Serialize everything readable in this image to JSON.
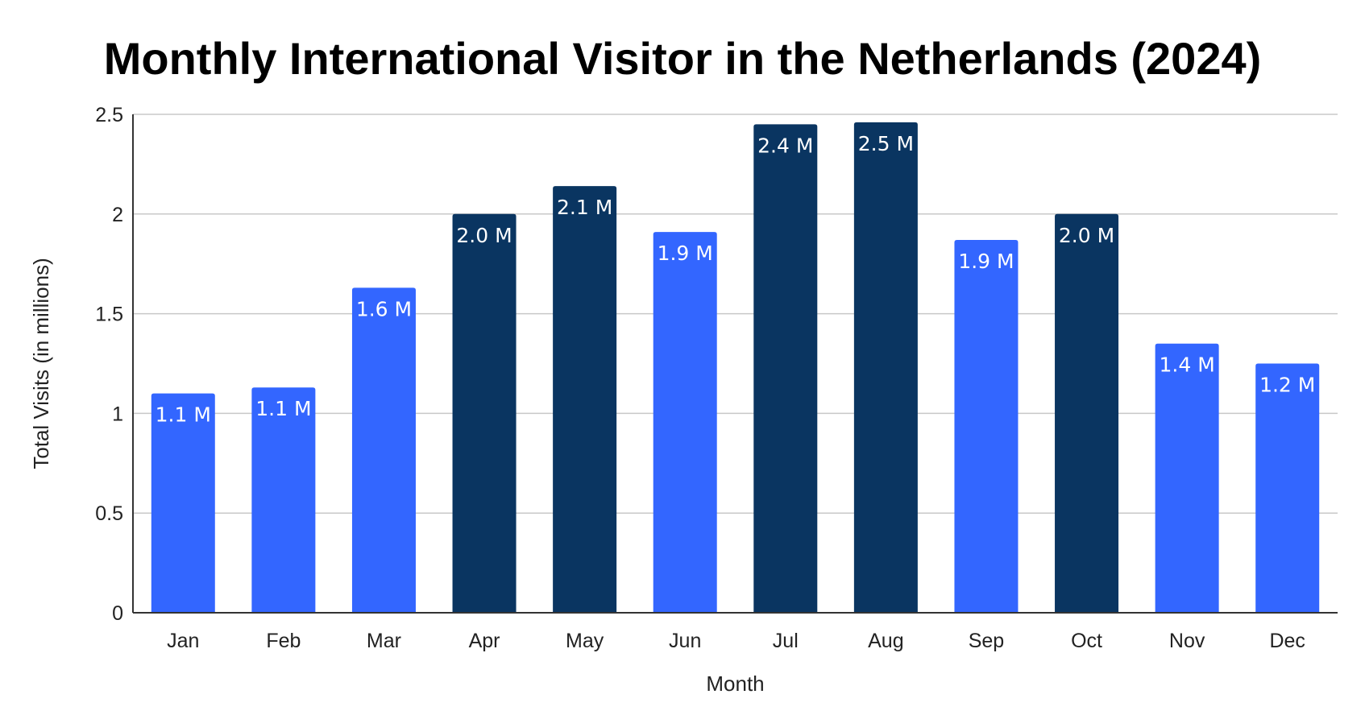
{
  "chart_data": {
    "type": "bar",
    "title": "Monthly International Visitor in the Netherlands (2024)",
    "xlabel": "Month",
    "ylabel": "Total Visits (in millions)",
    "ylim": [
      0,
      2.5
    ],
    "yticks": [
      0,
      0.5,
      1,
      1.5,
      2,
      2.5
    ],
    "ytick_labels": [
      "0",
      "0.5",
      "1",
      "1.5",
      "2",
      "2.5"
    ],
    "grid": true,
    "categories": [
      "Jan",
      "Feb",
      "Mar",
      "Apr",
      "May",
      "Jun",
      "Jul",
      "Aug",
      "Sep",
      "Oct",
      "Nov",
      "Dec"
    ],
    "values": [
      1.1,
      1.13,
      1.63,
      2.0,
      2.14,
      1.91,
      2.45,
      2.46,
      1.87,
      2.0,
      1.35,
      1.25
    ],
    "data_labels": [
      "1.1 M",
      "1.1 M",
      "1.6 M",
      "2.0 M",
      "2.1 M",
      "1.9 M",
      "2.4 M",
      "2.5 M",
      "1.9 M",
      "2.0 M",
      "1.4 M",
      "1.2 M"
    ],
    "highlighted": [
      false,
      false,
      false,
      true,
      true,
      false,
      true,
      true,
      false,
      true,
      false,
      false
    ],
    "colors": {
      "bar": "#3366ff",
      "bar_highlight": "#0a3561",
      "label": "#ffffff"
    }
  }
}
